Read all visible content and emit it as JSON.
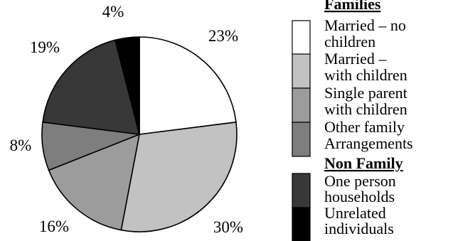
{
  "chart_data": {
    "type": "pie",
    "start_angle_deg": 0,
    "direction": "clockwise",
    "slices": [
      {
        "label": "Married – no children",
        "value": 23,
        "display": "23%",
        "color": "#ffffff"
      },
      {
        "label": "Married – with children",
        "value": 30,
        "display": "30%",
        "color": "#c2c2c2"
      },
      {
        "label": "Single parent with children",
        "value": 16,
        "display": "16%",
        "color": "#9c9c9c"
      },
      {
        "label": "Other family Arrangements",
        "value": 8,
        "display": "8%",
        "color": "#7e7e7e"
      },
      {
        "label": "One person households",
        "value": 19,
        "display": "19%",
        "color": "#383838"
      },
      {
        "label": "Unrelated individuals",
        "value": 4,
        "display": "4%",
        "color": "#000000"
      }
    ],
    "legend": {
      "placement": "right",
      "groups": [
        {
          "heading": "Families",
          "items": [
            {
              "lines": [
                "Married – no",
                "children"
              ],
              "color": "#ffffff"
            },
            {
              "lines": [
                "Married –",
                "with children"
              ],
              "color": "#c2c2c2"
            },
            {
              "lines": [
                "Single parent",
                "with children"
              ],
              "color": "#9c9c9c"
            },
            {
              "lines": [
                "Other family",
                "Arrangements"
              ],
              "color": "#7e7e7e"
            }
          ]
        },
        {
          "heading": "Non Family",
          "items": [
            {
              "lines": [
                "One person",
                "households"
              ],
              "color": "#383838"
            },
            {
              "lines": [
                "Unrelated",
                "individuals"
              ],
              "color": "#000000"
            }
          ]
        }
      ]
    }
  }
}
